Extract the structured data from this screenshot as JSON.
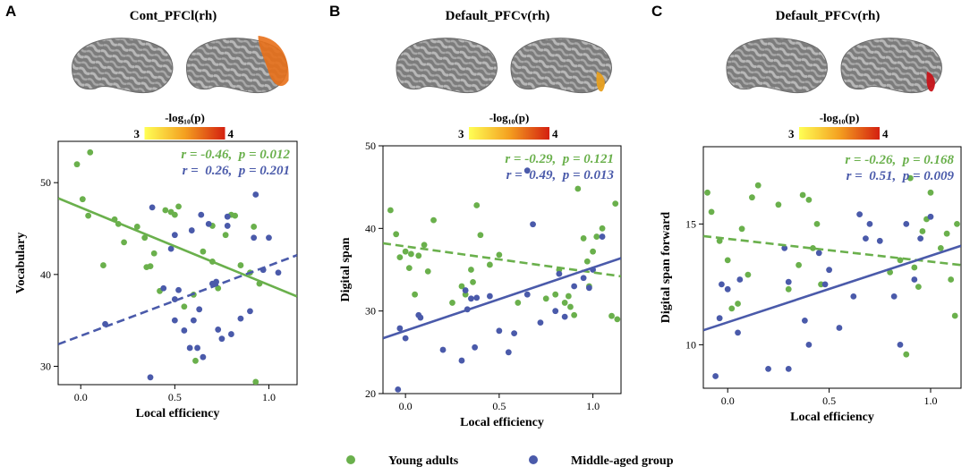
{
  "colors": {
    "young": "#6ab04c",
    "middle": "#4a5aaa"
  },
  "chart_data": [
    {
      "type": "scatter",
      "panel": "A",
      "title": "Cont_PFCl(rh)",
      "xlabel": "Local efficiency",
      "ylabel": "Vocabulary",
      "xlim": [
        -0.12,
        1.15
      ],
      "ylim": [
        28,
        54.5
      ],
      "xticks": [
        0.0,
        0.5,
        1.0
      ],
      "yticks": [
        30,
        40,
        50
      ],
      "colorbar": {
        "label": "-log₁₀(p)",
        "min": "3",
        "max": "4",
        "highlight": "lateral-pfc"
      },
      "series": [
        {
          "name": "Young adults",
          "color_key": "young",
          "stat": "r = -0.46,  p = 0.012",
          "fit": {
            "style": "solid",
            "x": [
              -0.12,
              1.15
            ],
            "y": [
              48.3,
              37.6
            ]
          },
          "points": [
            [
              -0.02,
              52
            ],
            [
              0.05,
              53.3
            ],
            [
              0.01,
              48.2
            ],
            [
              0.04,
              46.4
            ],
            [
              0.12,
              41
            ],
            [
              0.18,
              46
            ],
            [
              0.2,
              45.5
            ],
            [
              0.23,
              43.5
            ],
            [
              0.3,
              45.2
            ],
            [
              0.34,
              44
            ],
            [
              0.35,
              40.8
            ],
            [
              0.37,
              40.9
            ],
            [
              0.39,
              42.3
            ],
            [
              0.42,
              38.2
            ],
            [
              0.45,
              47
            ],
            [
              0.48,
              46.8
            ],
            [
              0.5,
              46.5
            ],
            [
              0.52,
              47.4
            ],
            [
              0.55,
              36.5
            ],
            [
              0.6,
              37.8
            ],
            [
              0.61,
              30.6
            ],
            [
              0.65,
              42.5
            ],
            [
              0.7,
              41.4
            ],
            [
              0.7,
              45.3
            ],
            [
              0.73,
              38.5
            ],
            [
              0.77,
              44.3
            ],
            [
              0.8,
              46.5
            ],
            [
              0.82,
              46.4
            ],
            [
              0.85,
              41
            ],
            [
              0.9,
              40.2
            ],
            [
              0.92,
              45.2
            ],
            [
              0.93,
              28.3
            ],
            [
              0.95,
              39
            ]
          ]
        },
        {
          "name": "Middle-aged group",
          "color_key": "middle",
          "stat": "r =  0.26,  p = 0.201",
          "fit": {
            "style": "dashed",
            "x": [
              -0.12,
              1.15
            ],
            "y": [
              32.4,
              42.1
            ]
          },
          "points": [
            [
              0.13,
              34.6
            ],
            [
              0.37,
              28.8
            ],
            [
              0.38,
              47.3
            ],
            [
              0.44,
              38.5
            ],
            [
              0.48,
              42.8
            ],
            [
              0.5,
              44.3
            ],
            [
              0.5,
              37.3
            ],
            [
              0.5,
              35
            ],
            [
              0.52,
              38.3
            ],
            [
              0.55,
              33.9
            ],
            [
              0.58,
              32
            ],
            [
              0.59,
              44.8
            ],
            [
              0.6,
              35
            ],
            [
              0.62,
              32
            ],
            [
              0.63,
              36.2
            ],
            [
              0.64,
              46.5
            ],
            [
              0.65,
              31
            ],
            [
              0.68,
              45.5
            ],
            [
              0.7,
              39
            ],
            [
              0.72,
              39.2
            ],
            [
              0.73,
              34
            ],
            [
              0.75,
              33
            ],
            [
              0.78,
              45.3
            ],
            [
              0.78,
              46.3
            ],
            [
              0.8,
              33.5
            ],
            [
              0.85,
              35.2
            ],
            [
              0.9,
              36
            ],
            [
              0.92,
              44
            ],
            [
              0.93,
              48.7
            ],
            [
              0.97,
              40.5
            ],
            [
              1.0,
              44
            ],
            [
              1.05,
              40.2
            ]
          ]
        }
      ]
    },
    {
      "type": "scatter",
      "panel": "B",
      "title": "Default_PFCv(rh)",
      "xlabel": "Local efficiency",
      "ylabel": "Digital span",
      "xlim": [
        -0.12,
        1.15
      ],
      "ylim": [
        20,
        50
      ],
      "xticks": [
        0.0,
        0.5,
        1.0
      ],
      "yticks": [
        20,
        30,
        40,
        50
      ],
      "colorbar": {
        "label": "-log₁₀(p)",
        "min": "3",
        "max": "4",
        "highlight": "ventral-pfc"
      },
      "series": [
        {
          "name": "Young adults",
          "color_key": "young",
          "stat": "r = -0.29,  p = 0.121",
          "fit": {
            "style": "dashed",
            "x": [
              -0.12,
              1.15
            ],
            "y": [
              38.2,
              34.2
            ]
          },
          "points": [
            [
              -0.08,
              42.2
            ],
            [
              -0.05,
              39.3
            ],
            [
              -0.03,
              36.5
            ],
            [
              0.0,
              37.2
            ],
            [
              0.02,
              35.2
            ],
            [
              0.03,
              36.9
            ],
            [
              0.05,
              32
            ],
            [
              0.07,
              36.7
            ],
            [
              0.1,
              38
            ],
            [
              0.12,
              34.8
            ],
            [
              0.15,
              41
            ],
            [
              0.25,
              31
            ],
            [
              0.3,
              33
            ],
            [
              0.32,
              32
            ],
            [
              0.35,
              35
            ],
            [
              0.36,
              33.5
            ],
            [
              0.38,
              42.8
            ],
            [
              0.4,
              39.2
            ],
            [
              0.45,
              35.6
            ],
            [
              0.5,
              36.8
            ],
            [
              0.6,
              31
            ],
            [
              0.75,
              31.5
            ],
            [
              0.8,
              32
            ],
            [
              0.82,
              35
            ],
            [
              0.85,
              31
            ],
            [
              0.87,
              31.8
            ],
            [
              0.88,
              30.5
            ],
            [
              0.9,
              29.5
            ],
            [
              0.92,
              44.8
            ],
            [
              0.95,
              38.8
            ],
            [
              0.97,
              36
            ],
            [
              0.98,
              33
            ],
            [
              1.0,
              37.2
            ],
            [
              1.02,
              39
            ],
            [
              1.05,
              40
            ],
            [
              1.1,
              29.4
            ],
            [
              1.12,
              43
            ],
            [
              1.13,
              29
            ]
          ]
        },
        {
          "name": "Middle-aged group",
          "color_key": "middle",
          "stat": "r =  0.49,  p = 0.013",
          "fit": {
            "style": "solid",
            "x": [
              -0.12,
              1.15
            ],
            "y": [
              26.7,
              36.4
            ]
          },
          "points": [
            [
              -0.04,
              20.5
            ],
            [
              -0.03,
              27.9
            ],
            [
              0.0,
              26.7
            ],
            [
              0.07,
              29.5
            ],
            [
              0.08,
              29.2
            ],
            [
              0.2,
              25.3
            ],
            [
              0.3,
              24
            ],
            [
              0.32,
              32.5
            ],
            [
              0.33,
              30.2
            ],
            [
              0.35,
              31.5
            ],
            [
              0.37,
              25.6
            ],
            [
              0.38,
              31.6
            ],
            [
              0.45,
              31.8
            ],
            [
              0.5,
              27.6
            ],
            [
              0.55,
              25
            ],
            [
              0.58,
              27.3
            ],
            [
              0.65,
              32
            ],
            [
              0.65,
              47
            ],
            [
              0.68,
              40.5
            ],
            [
              0.72,
              28.6
            ],
            [
              0.8,
              30
            ],
            [
              0.82,
              34.5
            ],
            [
              0.85,
              29.3
            ],
            [
              0.9,
              33
            ],
            [
              0.95,
              34
            ],
            [
              0.98,
              32.8
            ],
            [
              1.0,
              35
            ],
            [
              1.05,
              39
            ]
          ]
        }
      ]
    },
    {
      "type": "scatter",
      "panel": "C",
      "title": "Default_PFCv(rh)",
      "xlabel": "Local efficiency",
      "ylabel": "Digital span forward",
      "xlim": [
        -0.12,
        1.15
      ],
      "ylim": [
        8.2,
        18.2
      ],
      "xticks": [
        0.0,
        0.5,
        1.0
      ],
      "yticks": [
        10,
        15
      ],
      "colorbar": {
        "label": "-log₁₀(p)",
        "min": "3",
        "max": "4",
        "highlight": "ventral-pfc"
      },
      "series": [
        {
          "name": "Young adults",
          "color_key": "young",
          "stat": "r = -0.26,  p = 0.168",
          "fit": {
            "style": "dashed",
            "x": [
              -0.12,
              1.15
            ],
            "y": [
              14.5,
              13.3
            ]
          },
          "points": [
            [
              -0.1,
              16.3
            ],
            [
              -0.08,
              15.5
            ],
            [
              -0.04,
              14.3
            ],
            [
              0.0,
              13.5
            ],
            [
              0.02,
              11.5
            ],
            [
              0.05,
              11.7
            ],
            [
              0.07,
              14.8
            ],
            [
              0.1,
              12.9
            ],
            [
              0.12,
              16.1
            ],
            [
              0.15,
              16.6
            ],
            [
              0.25,
              15.8
            ],
            [
              0.3,
              12.3
            ],
            [
              0.35,
              13.3
            ],
            [
              0.37,
              16.2
            ],
            [
              0.4,
              16
            ],
            [
              0.42,
              14
            ],
            [
              0.44,
              15
            ],
            [
              0.46,
              12.5
            ],
            [
              0.8,
              13
            ],
            [
              0.85,
              13.5
            ],
            [
              0.88,
              9.6
            ],
            [
              0.9,
              16.9
            ],
            [
              0.92,
              13.2
            ],
            [
              0.94,
              12.4
            ],
            [
              0.96,
              14.7
            ],
            [
              0.98,
              15.2
            ],
            [
              1.0,
              16.3
            ],
            [
              1.05,
              14
            ],
            [
              1.08,
              14.6
            ],
            [
              1.1,
              12.7
            ],
            [
              1.12,
              11.2
            ],
            [
              1.13,
              15
            ]
          ]
        },
        {
          "name": "Middle-aged group",
          "color_key": "middle",
          "stat": "r =  0.51,  p = 0.009",
          "fit": {
            "style": "solid",
            "x": [
              -0.12,
              1.15
            ],
            "y": [
              10.6,
              14.1
            ]
          },
          "points": [
            [
              -0.06,
              8.7
            ],
            [
              -0.04,
              11.1
            ],
            [
              -0.03,
              12.5
            ],
            [
              0.0,
              12.3
            ],
            [
              0.05,
              10.5
            ],
            [
              0.06,
              12.7
            ],
            [
              0.2,
              9
            ],
            [
              0.28,
              14
            ],
            [
              0.3,
              9
            ],
            [
              0.3,
              12.6
            ],
            [
              0.38,
              11
            ],
            [
              0.4,
              10
            ],
            [
              0.45,
              13.8
            ],
            [
              0.48,
              12.5
            ],
            [
              0.5,
              13.1
            ],
            [
              0.55,
              10.7
            ],
            [
              0.62,
              12
            ],
            [
              0.65,
              15.4
            ],
            [
              0.68,
              14.4
            ],
            [
              0.7,
              15
            ],
            [
              0.75,
              14.3
            ],
            [
              0.82,
              12
            ],
            [
              0.85,
              10
            ],
            [
              0.88,
              15
            ],
            [
              0.92,
              12.7
            ],
            [
              0.95,
              14.4
            ],
            [
              1.0,
              15.3
            ]
          ]
        }
      ]
    }
  ],
  "legend": {
    "items": [
      {
        "label": "Young adults",
        "color_key": "young"
      },
      {
        "label": "Middle-aged group",
        "color_key": "middle"
      }
    ]
  }
}
